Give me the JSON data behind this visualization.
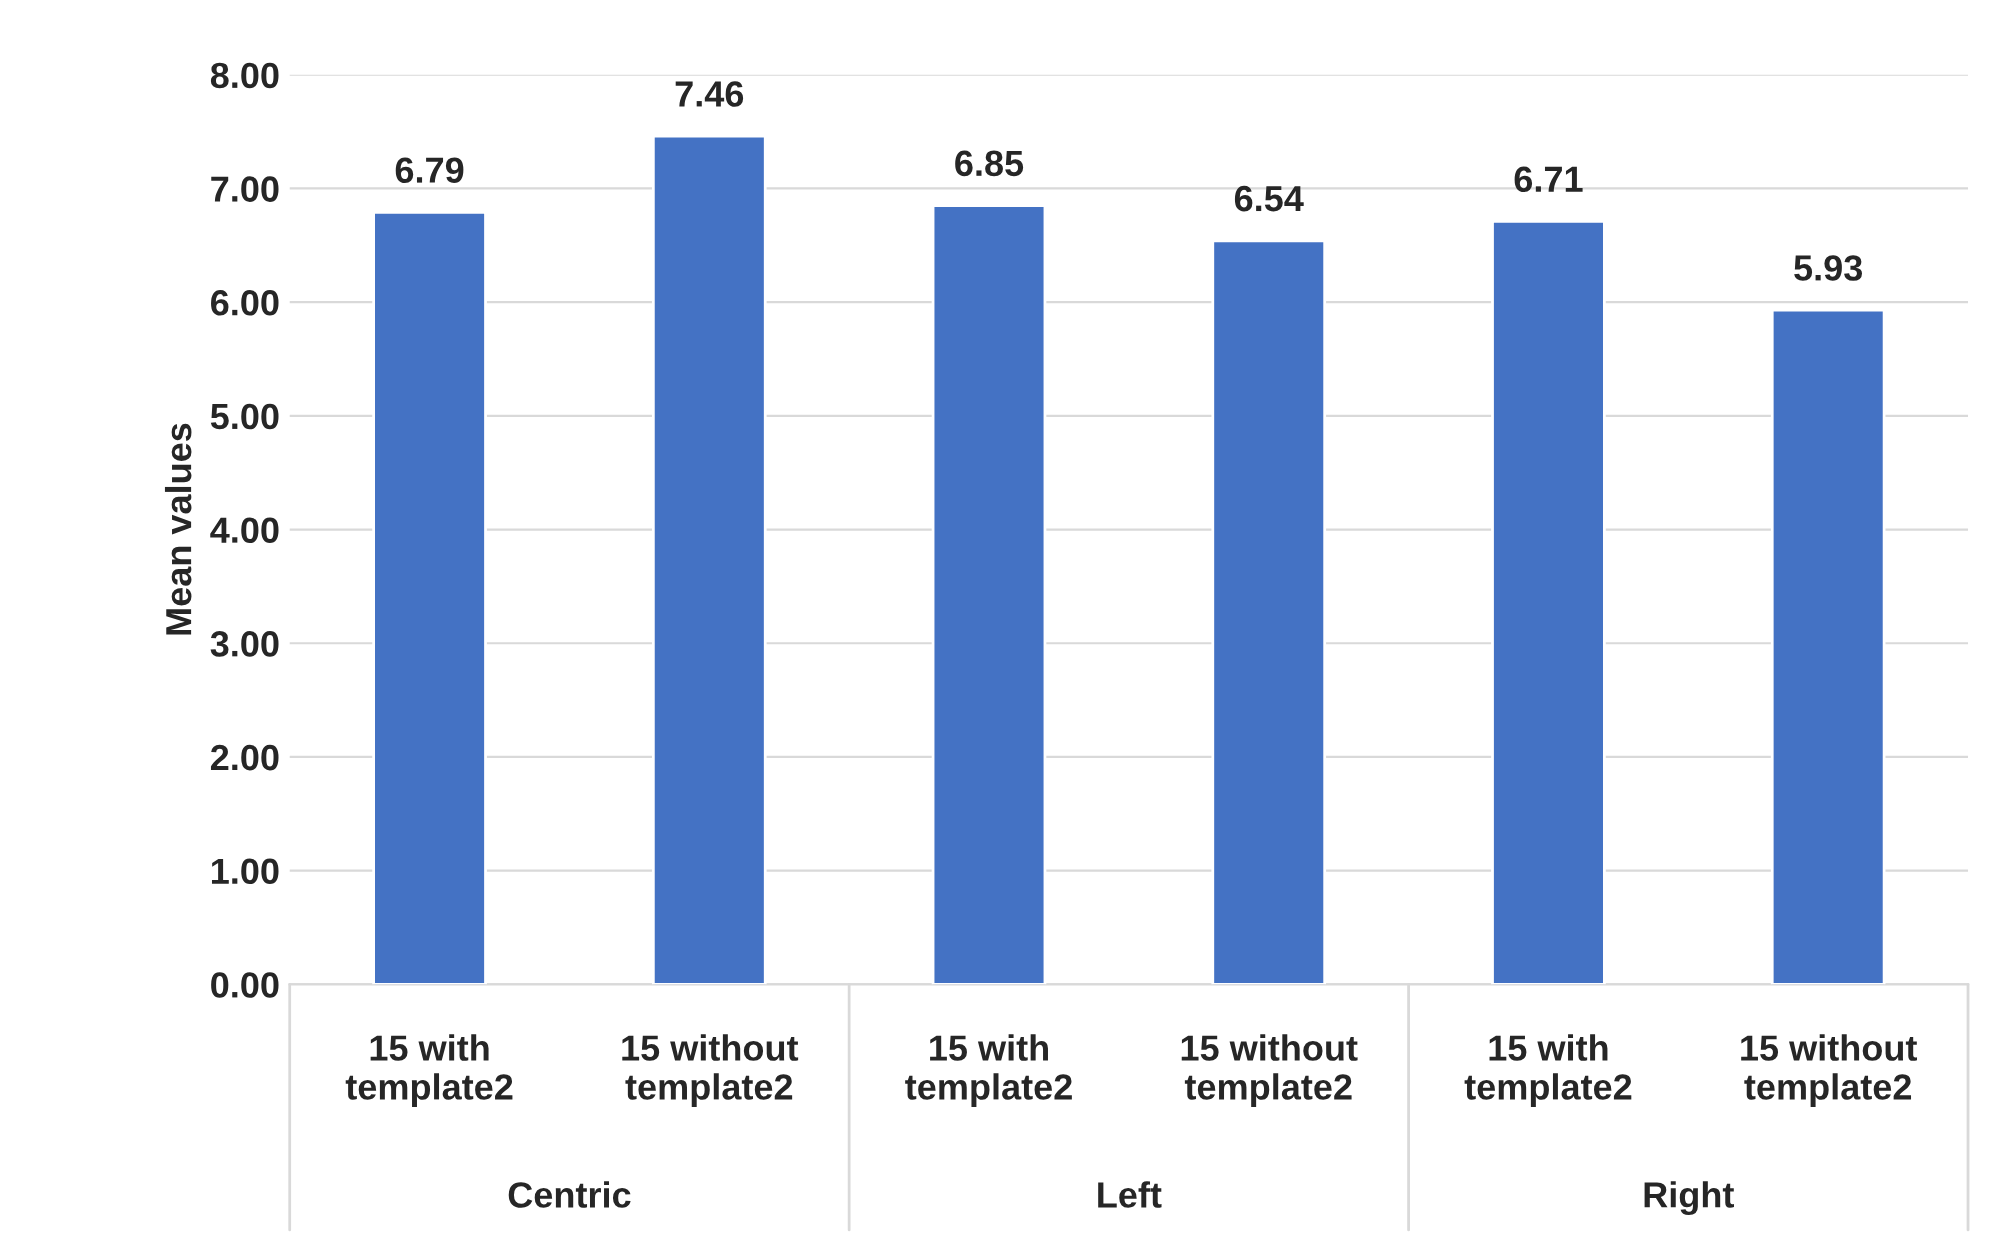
{
  "chart_data": {
    "type": "bar",
    "ylabel": "Mean values",
    "categories": [
      "15 with\ntemplate2",
      "15 without\ntemplate2",
      "15 with\ntemplate2",
      "15 without\ntemplate2",
      "15 with\ntemplate2",
      "15 without\ntemplate2"
    ],
    "values": [
      6.79,
      7.46,
      6.85,
      6.54,
      6.71,
      5.93
    ],
    "color": "#4472c4",
    "data_labels": true,
    "value_labels": [
      "6.79",
      "7.46",
      "6.85",
      "6.54",
      "6.71",
      "5.93"
    ],
    "annotations": [
      "Centric",
      "Left",
      "Right"
    ],
    "ylim": [
      0,
      8
    ],
    "yticks": [
      {
        "value": 0,
        "label": "0.00"
      },
      {
        "value": 1,
        "label": "1.00"
      },
      {
        "value": 2,
        "label": "2.00"
      },
      {
        "value": 3,
        "label": "3.00"
      },
      {
        "value": 4,
        "label": "4.00"
      },
      {
        "value": 5,
        "label": "5.00"
      },
      {
        "value": 6,
        "label": "6.00"
      },
      {
        "value": 7,
        "label": "7.00"
      },
      {
        "value": 8,
        "label": "8.00"
      }
    ],
    "grid": "y",
    "legend": false
  }
}
